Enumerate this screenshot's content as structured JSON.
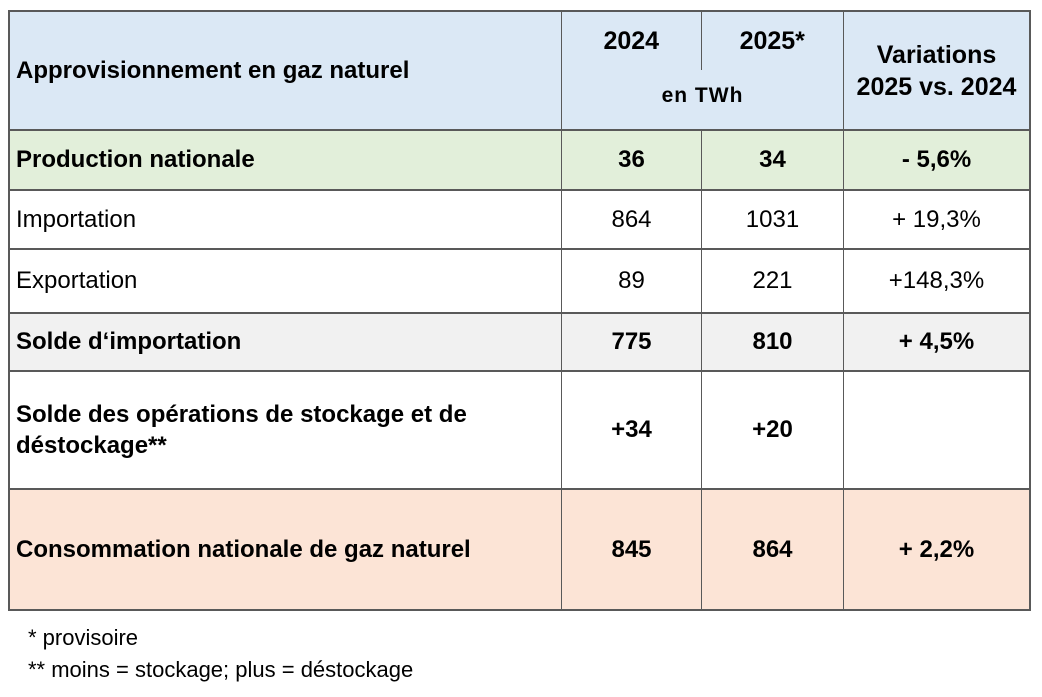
{
  "chart_data": {
    "type": "table",
    "title": "Approvisionnement en gaz naturel",
    "unit": "en TWh",
    "columns": [
      "Approvisionnement en gaz naturel",
      "2024",
      "2025*",
      "Variations 2025 vs. 2024"
    ],
    "rows": [
      [
        "Production nationale",
        36,
        34,
        "- 5,6%"
      ],
      [
        "Importation",
        864,
        1031,
        "+ 19,3%"
      ],
      [
        "Exportation",
        89,
        221,
        "+148,3%"
      ],
      [
        "Solde d‘importation",
        775,
        810,
        "+ 4,5%"
      ],
      [
        "Solde des opérations de stockage et de déstockage**",
        "+34",
        "+20",
        ""
      ],
      [
        "Consommation nationale de gaz naturel",
        845,
        864,
        "+ 2,2%"
      ]
    ],
    "footnotes": [
      "* provisoire",
      "** moins = stockage; plus = déstockage"
    ]
  },
  "header": {
    "title": "Approvisionnement en gaz naturel",
    "col_2024": "2024",
    "col_2025": "2025*",
    "unit": "en TWh",
    "variations_line1": "Variations",
    "variations_line2": "2025 vs. 2024"
  },
  "rows": [
    {
      "label": "Production nationale",
      "v2024": "36",
      "v2025": "34",
      "variation": "- 5,6%"
    },
    {
      "label": "Importation",
      "v2024": "864",
      "v2025": "1031",
      "variation": "+ 19,3%"
    },
    {
      "label": "Exportation",
      "v2024": "89",
      "v2025": "221",
      "variation": "+148,3%"
    },
    {
      "label": "Solde d‘importation",
      "v2024": "775",
      "v2025": "810",
      "variation": "+ 4,5%"
    },
    {
      "label": "Solde des opérations de stockage et de déstockage**",
      "v2024": "+34",
      "v2025": "+20",
      "variation": ""
    },
    {
      "label": "Consommation nationale de gaz naturel",
      "v2024": "845",
      "v2025": "864",
      "variation": "+ 2,2%"
    }
  ],
  "footnotes": [
    "* provisoire",
    "** moins = stockage; plus = déstockage"
  ],
  "colors": {
    "header_bg": "#dbe8f5",
    "production_row_bg": "#e2efda",
    "solde_row_bg": "#f1f1f1",
    "consommation_row_bg": "#fce4d6",
    "border": "#595959"
  }
}
